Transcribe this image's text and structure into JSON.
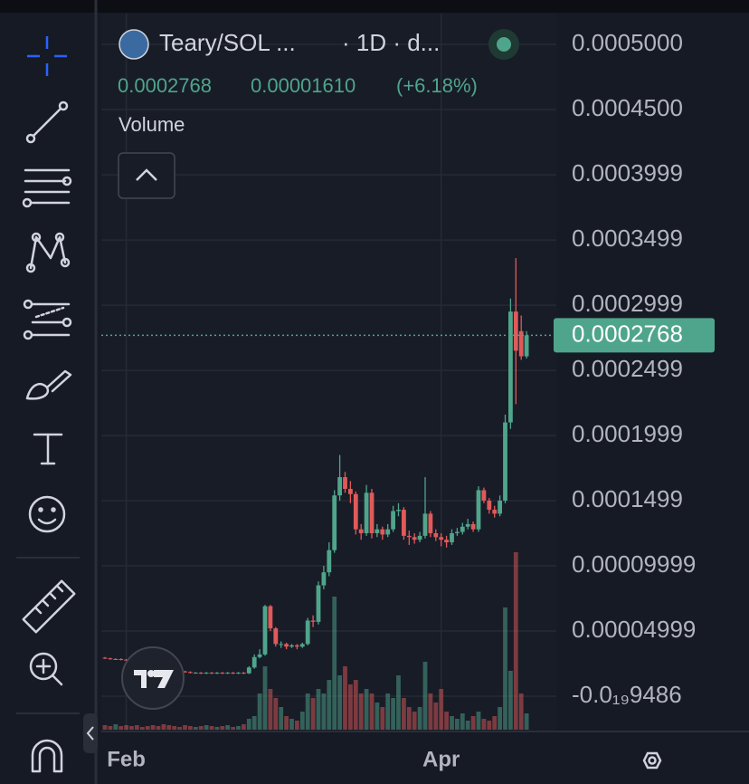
{
  "chart_data": {
    "type": "candlestick",
    "symbol": "Teary/SOL ...",
    "interval": "· 1D · d...",
    "legend_values": [
      "0.0002768",
      "0.00001610",
      "(+6.18%)"
    ],
    "volume_title": "Volume",
    "up_color": "#4fa58b",
    "down_color": "#e05a5a",
    "grid": true,
    "last_price": 0.0002768,
    "categories": [
      null,
      null,
      null,
      null,
      "Feb",
      null,
      null,
      null,
      null,
      null,
      null,
      null,
      null,
      null,
      null,
      null,
      null,
      null,
      null,
      null,
      null,
      null,
      null,
      null,
      null,
      null,
      null,
      null,
      null,
      null,
      null,
      null,
      null,
      null,
      null,
      null,
      null,
      null,
      null,
      null,
      null,
      null,
      null,
      null,
      null,
      null,
      null,
      null,
      null,
      null,
      null,
      null,
      null,
      null,
      null,
      null,
      null,
      null,
      null,
      null,
      null,
      null,
      null,
      "Apr",
      null,
      null,
      null,
      null,
      null,
      null,
      null,
      null,
      null,
      null,
      null,
      null,
      null,
      null,
      null,
      null
    ],
    "open": [
      2.95e-05,
      2.9e-05,
      2.85e-05,
      2.85e-05,
      2.8e-05,
      2.75e-05,
      2.7e-05,
      2.6e-05,
      2.5e-05,
      2.4e-05,
      2.3e-05,
      2.2e-05,
      2.1e-05,
      2e-05,
      1.95e-05,
      1.9e-05,
      1.85e-05,
      1.8e-05,
      1.8e-05,
      1.75e-05,
      1.8e-05,
      1.75e-05,
      1.8e-05,
      1.75e-05,
      1.8e-05,
      1.75e-05,
      1.8e-05,
      1.75e-05,
      2.2e-05,
      3e-05,
      3.2e-05,
      6.9e-05,
      5.2e-05,
      4e-05,
      4e-05,
      3.8e-05,
      3.9e-05,
      3.8e-05,
      4e-05,
      5.8e-05,
      5.7e-05,
      8.5e-05,
      9.5e-05,
      0.000112,
      0.000154,
      0.000168,
      0.000159,
      0.000155,
      0.000128,
      0.000125,
      0.000156,
      0.000125,
      0.000128,
      0.000124,
      0.000128,
      0.000142,
      0.000143,
      0.000123,
      0.000122,
      0.00012,
      0.000123,
      0.00014,
      0.000125,
      0.000122,
      0.00012,
      0.000118,
      0.000125,
      0.000126,
      0.00013,
      0.000132,
      0.000128,
      0.000158,
      0.00015,
      0.000143,
      0.00014,
      0.00015,
      0.00021,
      0.000295,
      0.00028,
      0.0002607
    ],
    "high": [
      3e-05,
      2.95e-05,
      2.9e-05,
      2.9e-05,
      2.85e-05,
      2.8e-05,
      2.75e-05,
      2.65e-05,
      2.55e-05,
      2.45e-05,
      2.35e-05,
      2.25e-05,
      2.15e-05,
      2.05e-05,
      2e-05,
      1.95e-05,
      1.9e-05,
      1.85e-05,
      1.85e-05,
      1.85e-05,
      1.85e-05,
      1.85e-05,
      1.85e-05,
      1.85e-05,
      1.85e-05,
      1.85e-05,
      1.85e-05,
      2.3e-05,
      3.2e-05,
      3.6e-05,
      7e-05,
      7e-05,
      5.3e-05,
      4.2e-05,
      4.1e-05,
      4e-05,
      4e-05,
      4.1e-05,
      6e-05,
      6.2e-05,
      8.8e-05,
      0.0001,
      0.000118,
      0.000158,
      0.000185,
      0.000172,
      0.000165,
      0.000157,
      0.000132,
      0.000162,
      0.000159,
      0.000132,
      0.00013,
      0.000132,
      0.000146,
      0.000148,
      0.000145,
      0.000127,
      0.000125,
      0.000126,
      0.000168,
      0.000142,
      0.000128,
      0.000125,
      0.000123,
      0.000128,
      0.000129,
      0.000133,
      0.000136,
      0.000134,
      0.000161,
      0.00016,
      0.000152,
      0.000146,
      0.000154,
      0.000216,
      0.000305,
      0.000336,
      0.000292,
      0.00028
    ],
    "low": [
      2.85e-05,
      2.8e-05,
      2.8e-05,
      2.75e-05,
      2.7e-05,
      2.65e-05,
      2.55e-05,
      2.45e-05,
      2.35e-05,
      2.25e-05,
      2.15e-05,
      2.05e-05,
      1.95e-05,
      1.9e-05,
      1.85e-05,
      1.8e-05,
      1.75e-05,
      1.75e-05,
      1.7e-05,
      1.7e-05,
      1.7e-05,
      1.7e-05,
      1.7e-05,
      1.7e-05,
      1.7e-05,
      1.7e-05,
      1.7e-05,
      1.7e-05,
      2.1e-05,
      2.9e-05,
      3.1e-05,
      5e-05,
      3.8e-05,
      3.7e-05,
      3.6e-05,
      3.7e-05,
      3.6e-05,
      3.7e-05,
      3.9e-05,
      5.3e-05,
      5.5e-05,
      8.2e-05,
      9.2e-05,
      0.00011,
      0.00015,
      0.000156,
      0.000148,
      0.000124,
      0.00012,
      0.000123,
      0.000121,
      0.000122,
      0.00012,
      0.000122,
      0.000126,
      0.000138,
      0.00012,
      0.000116,
      0.000117,
      0.000118,
      0.000121,
      0.000122,
      0.000119,
      0.000115,
      0.000114,
      0.000116,
      0.000123,
      0.000124,
      0.000128,
      0.000126,
      0.000126,
      0.000148,
      0.00014,
      0.000137,
      0.000138,
      0.000148,
      0.000205,
      0.000224,
      0.000258,
      0.000259
    ],
    "close": [
      2.9e-05,
      2.85e-05,
      2.85e-05,
      2.8e-05,
      2.75e-05,
      2.7e-05,
      2.6e-05,
      2.5e-05,
      2.4e-05,
      2.3e-05,
      2.2e-05,
      2.1e-05,
      2e-05,
      1.95e-05,
      1.9e-05,
      1.85e-05,
      1.8e-05,
      1.8e-05,
      1.75e-05,
      1.8e-05,
      1.75e-05,
      1.8e-05,
      1.75e-05,
      1.8e-05,
      1.75e-05,
      1.8e-05,
      1.75e-05,
      2.2e-05,
      3e-05,
      3.2e-05,
      6.9e-05,
      5.2e-05,
      4e-05,
      4e-05,
      3.8e-05,
      3.9e-05,
      3.8e-05,
      4e-05,
      5.8e-05,
      5.7e-05,
      8.5e-05,
      9.5e-05,
      0.000112,
      0.000154,
      0.000168,
      0.000159,
      0.000155,
      0.000128,
      0.000125,
      0.000156,
      0.000125,
      0.000128,
      0.000124,
      0.000128,
      0.000142,
      0.000143,
      0.000123,
      0.000122,
      0.00012,
      0.000123,
      0.00014,
      0.000125,
      0.000122,
      0.00012,
      0.000118,
      0.000125,
      0.000126,
      0.00013,
      0.000132,
      0.000128,
      0.000158,
      0.00015,
      0.000143,
      0.00014,
      0.00015,
      0.00021,
      0.000295,
      0.000265,
      0.0002607,
      0.0002768
    ],
    "volume": [
      5,
      4,
      6,
      4,
      5,
      4,
      5,
      3,
      4,
      5,
      4,
      6,
      5,
      4,
      3,
      5,
      4,
      3,
      4,
      5,
      4,
      3,
      4,
      5,
      3,
      4,
      6,
      12,
      15,
      40,
      70,
      45,
      35,
      25,
      15,
      12,
      10,
      20,
      40,
      35,
      45,
      40,
      55,
      147,
      60,
      70,
      50,
      55,
      40,
      45,
      40,
      30,
      25,
      40,
      35,
      60,
      35,
      25,
      20,
      25,
      75,
      40,
      30,
      45,
      20,
      15,
      12,
      18,
      10,
      15,
      20,
      12,
      10,
      15,
      25,
      135,
      65,
      196,
      40,
      18
    ],
    "volume_lim": [
      0,
      200
    ],
    "ylim": [
      -2.71e-05,
      0.0005236
    ],
    "yticks": [
      {
        "value": 0.0005,
        "label": "0.0005000"
      },
      {
        "value": 0.00045,
        "label": "0.0004500"
      },
      0.0003999,
      0.0003499,
      0.0002999,
      0.0002499,
      0.0001999,
      0.0001499,
      9.999e-05,
      4.999e-05,
      {
        "value": -9.486e-20,
        "label": "-0.0₁₉9486"
      }
    ]
  }
}
